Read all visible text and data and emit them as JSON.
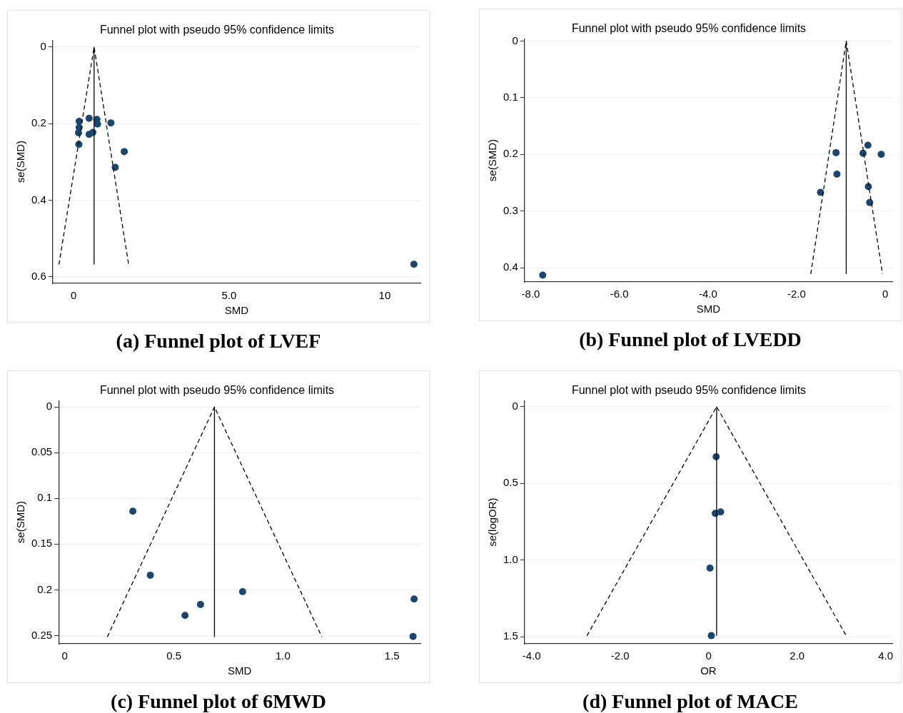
{
  "chart_data": [
    {
      "type": "scatter",
      "title": "Funnel plot with pseudo 95% confidence limits",
      "xlabel": "SMD",
      "ylabel": "se(SMD)",
      "xlim": [
        -0.67,
        11.15
      ],
      "ylim": [
        0.617,
        -0.018
      ],
      "xticks": [
        0,
        {
          "value": 5,
          "label": "5.0"
        },
        10
      ],
      "yticks": [
        0,
        0.2,
        0.4,
        0.6
      ],
      "grid": "y",
      "annotations": [
        "(a) Funnel plot of LVEF"
      ],
      "series": [
        {
          "type": "scatter",
          "marker": "circle",
          "color": "#1a476f",
          "x": [
            0.18,
            0.18,
            0.16,
            0.17,
            0.5,
            0.75,
            0.77,
            1.2,
            0.5,
            0.62,
            1.63,
            1.34,
            10.94
          ],
          "values": [
            0.194,
            0.21,
            0.224,
            0.254,
            0.186,
            0.189,
            0.201,
            0.198,
            0.228,
            0.223,
            0.273,
            0.314,
            0.567
          ]
        },
        {
          "type": "line",
          "marker": "none",
          "line_style": "solid",
          "color": "#000000",
          "x": [
            0.66,
            0.66
          ],
          "values": [
            0.568,
            0
          ]
        },
        {
          "type": "line",
          "marker": "none",
          "line_style": "dashed",
          "color": "#000000",
          "x": [
            -0.47,
            0.66,
            1.77
          ],
          "values": [
            0.568,
            0,
            0.568
          ]
        }
      ]
    },
    {
      "type": "scatter",
      "title": "Funnel plot with pseudo 95% confidence limits",
      "xlabel": "SMD",
      "ylabel": "se(SMD)",
      "xlim": [
        -8.14,
        0.16
      ],
      "ylim": [
        0.425,
        -0.004
      ],
      "xticks": [
        {
          "value": -8,
          "label": "-8.0"
        },
        {
          "value": -6,
          "label": "-6.0"
        },
        {
          "value": -4,
          "label": "-4.0"
        },
        {
          "value": -2,
          "label": "-2.0"
        },
        0
      ],
      "yticks": [
        0,
        0.1,
        0.2,
        0.3,
        0.4
      ],
      "grid": "y",
      "annotations": [
        "(b) Funnel plot of LVEDD"
      ],
      "series": [
        {
          "type": "scatter",
          "marker": "circle",
          "color": "#1a476f",
          "x": [
            -7.73,
            -1.11,
            -1.09,
            -1.46,
            -0.39,
            -0.5,
            -0.09,
            -0.38,
            -0.35
          ],
          "values": [
            0.413,
            0.197,
            0.235,
            0.267,
            0.184,
            0.198,
            0.2,
            0.257,
            0.285
          ]
        },
        {
          "type": "line",
          "marker": "none",
          "line_style": "solid",
          "color": "#000000",
          "x": [
            -0.88,
            -0.88
          ],
          "values": [
            0.411,
            0
          ]
        },
        {
          "type": "line",
          "marker": "none",
          "line_style": "dashed",
          "color": "#000000",
          "x": [
            -1.68,
            -0.88,
            -0.06
          ],
          "values": [
            0.411,
            0,
            0.411
          ]
        }
      ]
    },
    {
      "type": "scatter",
      "title": "Funnel plot with pseudo 95% confidence limits",
      "xlabel": "SMD",
      "ylabel": "se(SMD)",
      "xlim": [
        -0.028,
        1.63
      ],
      "ylim": [
        0.259,
        -0.007
      ],
      "xticks": [
        0,
        0.5,
        {
          "value": 1,
          "label": "1.0"
        },
        1.5
      ],
      "yticks": [
        0,
        0.05,
        0.1,
        0.15,
        0.2,
        0.25
      ],
      "grid": "y",
      "annotations": [
        "(c) Funnel plot of 6MWD"
      ],
      "series": [
        {
          "type": "scatter",
          "marker": "circle",
          "color": "#1a476f",
          "x": [
            0.312,
            0.392,
            0.551,
            0.622,
            0.815,
            1.601,
            1.596
          ],
          "values": [
            0.114,
            0.184,
            0.228,
            0.216,
            0.202,
            0.21,
            0.251
          ]
        },
        {
          "type": "line",
          "marker": "none",
          "line_style": "solid",
          "color": "#000000",
          "x": [
            0.686,
            0.686
          ],
          "values": [
            0.2515,
            0
          ]
        },
        {
          "type": "line",
          "marker": "none",
          "line_style": "dashed",
          "color": "#000000",
          "x": [
            0.195,
            0.686,
            1.178
          ],
          "values": [
            0.2515,
            0,
            0.2515
          ]
        }
      ]
    },
    {
      "type": "scatter",
      "title": "Funnel plot with pseudo 95% confidence limits",
      "xlabel": "OR",
      "ylabel": "se(logOR)",
      "xlim": [
        -4.16,
        4.15
      ],
      "ylim": [
        1.546,
        -0.04
      ],
      "xticks": [
        {
          "value": -4,
          "label": "-4.0"
        },
        {
          "value": -2,
          "label": "-2.0"
        },
        0,
        {
          "value": 2,
          "label": "2.0"
        },
        {
          "value": 4,
          "label": "4.0"
        }
      ],
      "yticks": [
        0,
        {
          "value": 0.5,
          "label": "0.5"
        },
        {
          "value": 1,
          "label": "1.0"
        },
        {
          "value": 1.5,
          "label": "1.5"
        }
      ],
      "grid": "y",
      "annotations": [
        "(d) Funnel plot of MACE"
      ],
      "series": [
        {
          "type": "scatter",
          "marker": "circle",
          "color": "#1a476f",
          "x": [
            0.17,
            0.15,
            0.25,
            0.27,
            0.03,
            0.06
          ],
          "values": [
            0.327,
            0.696,
            null,
            0.686,
            1.053,
            1.493
          ]
        },
        {
          "type": "line",
          "marker": "none",
          "line_style": "solid",
          "color": "#000000",
          "x": [
            0.18,
            0.18
          ],
          "values": [
            1.494,
            0
          ]
        },
        {
          "type": "line",
          "marker": "none",
          "line_style": "dashed",
          "color": "#000000",
          "x": [
            -2.75,
            0.18,
            3.11
          ],
          "values": [
            1.494,
            0,
            1.494
          ]
        }
      ]
    }
  ]
}
